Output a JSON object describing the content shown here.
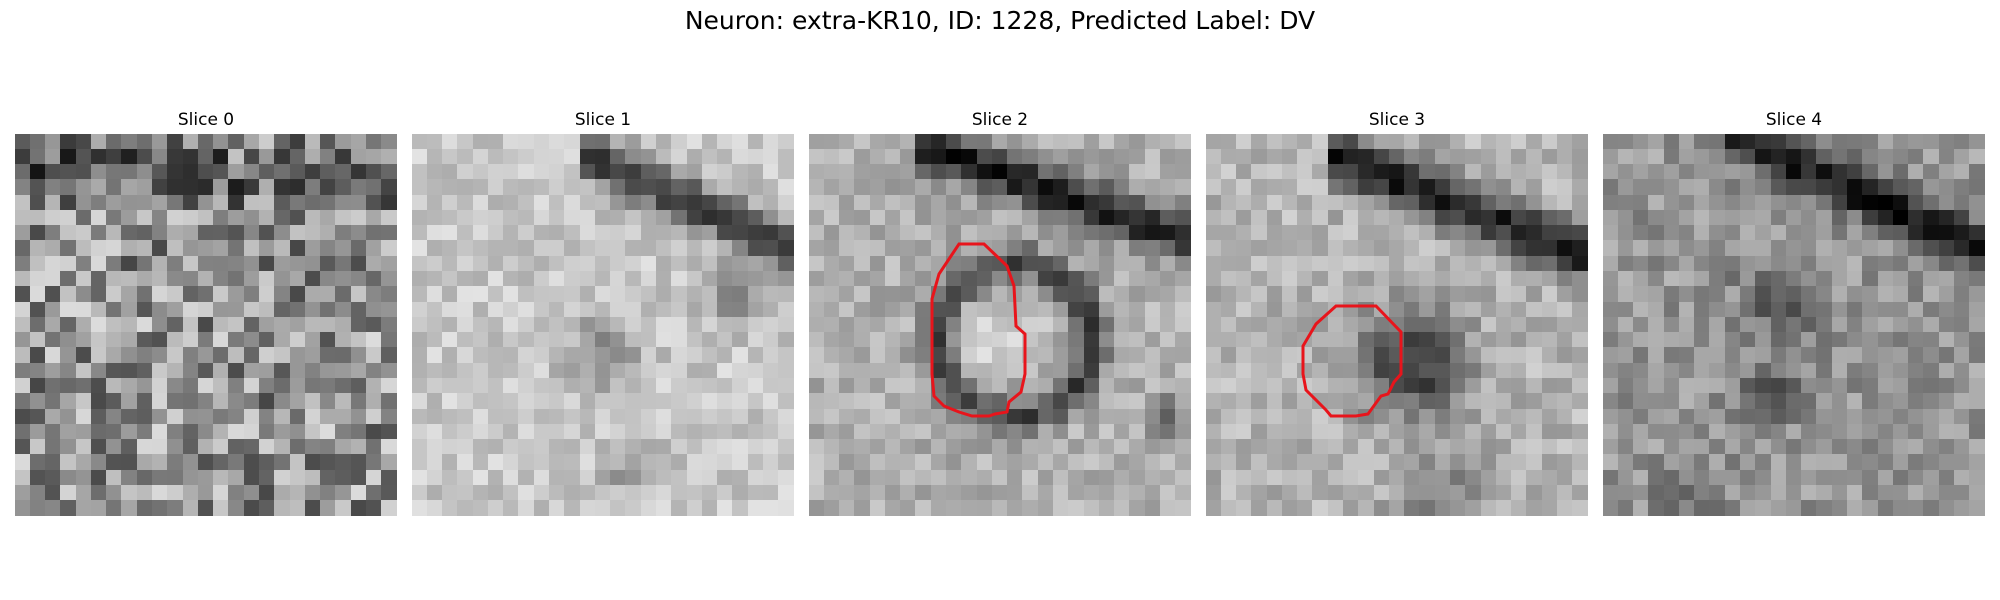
{
  "figure": {
    "title": "Neuron: extra-KR10, ID: 1228, Predicted Label: DV"
  },
  "panels": [
    {
      "title": "Slice 0",
      "has_contour": false
    },
    {
      "title": "Slice 1",
      "has_contour": false
    },
    {
      "title": "Slice 2",
      "has_contour": true
    },
    {
      "title": "Slice 3",
      "has_contour": true
    },
    {
      "title": "Slice 4",
      "has_contour": false
    }
  ],
  "colors": {
    "contour": "#e8141b",
    "background": "#ffffff"
  }
}
